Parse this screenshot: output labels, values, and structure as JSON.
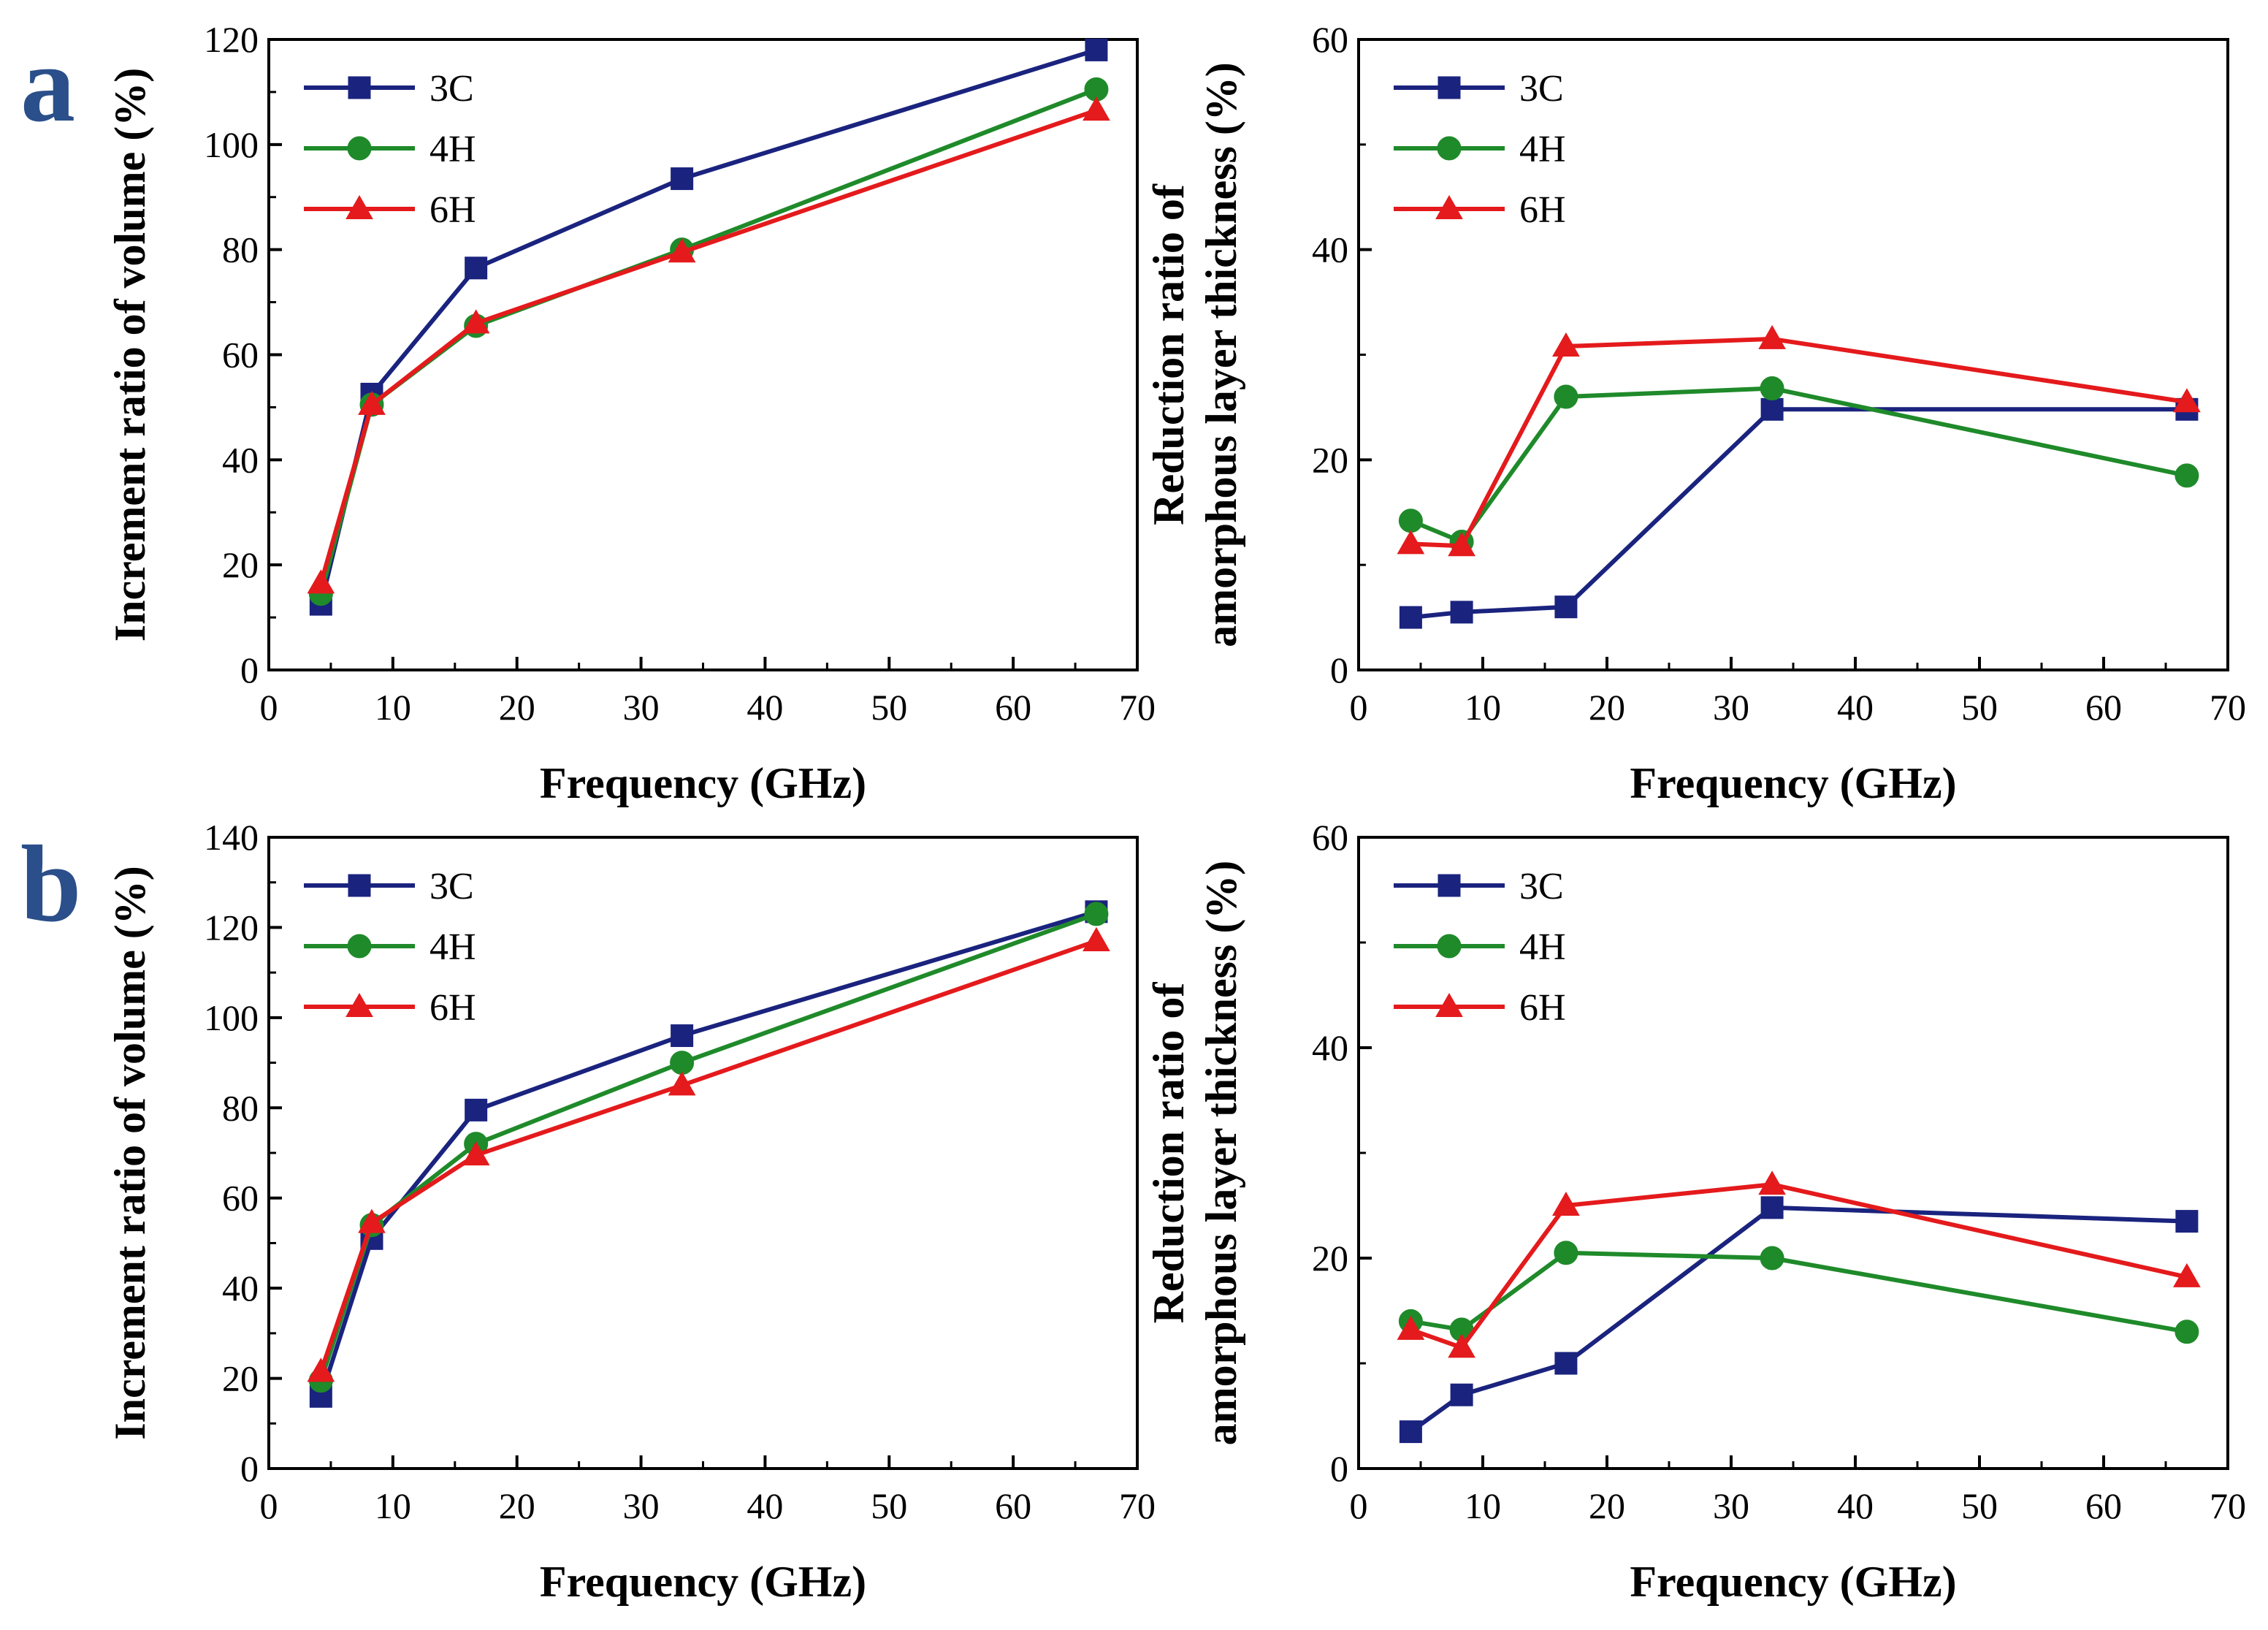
{
  "figure": {
    "panel_labels": [
      "a",
      "b"
    ]
  },
  "colors": {
    "3C": "#1a237e",
    "4H": "#1f8a2a",
    "6H": "#e41a1c"
  },
  "chart_data": [
    {
      "type": "line",
      "panel": "a",
      "xlabel": "Frequency (GHz)",
      "ylabel": [
        "Increment ratio of volume (%)"
      ],
      "xlim": [
        0,
        70
      ],
      "ylim": [
        0,
        120
      ],
      "xticks": [
        0,
        10,
        20,
        30,
        40,
        50,
        60,
        70
      ],
      "yticks": [
        0,
        20,
        40,
        60,
        80,
        100,
        120
      ],
      "x": [
        4.2,
        8.3,
        16.7,
        33.3,
        66.7
      ],
      "series": [
        {
          "name": "3C",
          "marker": "square",
          "values": [
            12.5,
            52.5,
            76.5,
            93.5,
            118
          ]
        },
        {
          "name": "4H",
          "marker": "circle",
          "values": [
            14.5,
            50.5,
            65.5,
            80,
            110.5
          ]
        },
        {
          "name": "6H",
          "marker": "triangle",
          "values": [
            16.5,
            50.5,
            66,
            79.5,
            106.5
          ]
        }
      ]
    },
    {
      "type": "line",
      "panel": "a",
      "xlabel": "Frequency (GHz)",
      "ylabel": [
        "Reduction ratio of",
        "amorphous layer thickness (%)"
      ],
      "xlim": [
        0,
        70
      ],
      "ylim": [
        0,
        60
      ],
      "xticks": [
        0,
        10,
        20,
        30,
        40,
        50,
        60,
        70
      ],
      "yticks": [
        0,
        20,
        40,
        60
      ],
      "x": [
        4.2,
        8.3,
        16.7,
        33.3,
        66.7
      ],
      "series": [
        {
          "name": "3C",
          "marker": "square",
          "values": [
            5,
            5.5,
            6,
            24.8,
            24.8
          ]
        },
        {
          "name": "4H",
          "marker": "circle",
          "values": [
            14.2,
            12.2,
            26,
            26.8,
            18.5
          ]
        },
        {
          "name": "6H",
          "marker": "triangle",
          "values": [
            12,
            11.8,
            30.8,
            31.5,
            25.5
          ]
        }
      ]
    },
    {
      "type": "line",
      "panel": "b",
      "xlabel": "Frequency (GHz)",
      "ylabel": [
        "Increment ratio of volume (%)"
      ],
      "xlim": [
        0,
        70
      ],
      "ylim": [
        0,
        140
      ],
      "xticks": [
        0,
        10,
        20,
        30,
        40,
        50,
        60,
        70
      ],
      "yticks": [
        0,
        20,
        40,
        60,
        80,
        100,
        120,
        140
      ],
      "x": [
        4.2,
        8.3,
        16.7,
        33.3,
        66.7
      ],
      "series": [
        {
          "name": "3C",
          "marker": "square",
          "values": [
            16,
            51,
            79.5,
            96,
            123.5
          ]
        },
        {
          "name": "4H",
          "marker": "circle",
          "values": [
            19.5,
            54,
            72,
            90,
            123
          ]
        },
        {
          "name": "6H",
          "marker": "triangle",
          "values": [
            21.5,
            54.5,
            69.5,
            85,
            117
          ]
        }
      ]
    },
    {
      "type": "line",
      "panel": "b",
      "xlabel": "Frequency (GHz)",
      "ylabel": [
        "Reduction ratio of",
        "amorphous layer thickness (%)"
      ],
      "xlim": [
        0,
        70
      ],
      "ylim": [
        0,
        60
      ],
      "xticks": [
        0,
        10,
        20,
        30,
        40,
        50,
        60,
        70
      ],
      "yticks": [
        0,
        20,
        40,
        60
      ],
      "x": [
        4.2,
        8.3,
        16.7,
        33.3,
        66.7
      ],
      "series": [
        {
          "name": "3C",
          "marker": "square",
          "values": [
            3.5,
            7,
            10,
            24.8,
            23.5
          ]
        },
        {
          "name": "4H",
          "marker": "circle",
          "values": [
            14,
            13.2,
            20.5,
            20,
            13
          ]
        },
        {
          "name": "6H",
          "marker": "triangle",
          "values": [
            13.2,
            11.5,
            25,
            27,
            18.2
          ]
        }
      ]
    }
  ]
}
